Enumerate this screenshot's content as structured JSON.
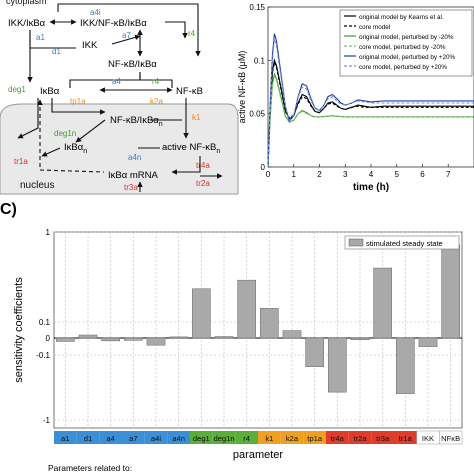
{
  "diagram": {
    "compartments": {
      "cytoplasm": "cytoplasm",
      "nucleus": "nucleus"
    },
    "species": {
      "ikk_ikba": "IKK/IκBα",
      "ikk_nfkb_ikba": "IKK/NF-κB/IκBα",
      "ikk": "IKK",
      "nfkb_ikba": "NF-κB/IκBα",
      "ikba": "IκBα",
      "nfkb": "NF-κB",
      "nfkb_ikba_n": "NF-κB/IκBα",
      "nfkb_ikba_n_sub": "n",
      "ikba_n": "IκBα",
      "ikba_n_sub": "n",
      "active_nfkb_n": "active NF-κB",
      "active_nfkb_n_sub": "n",
      "ikba_mrna": "IκBα mRNA"
    },
    "rate_labels": {
      "a4i": "a4i",
      "r4_top": "r4",
      "a1": "a1",
      "d1": "d1",
      "a7": "a7",
      "a4": "a4",
      "r4_mid": "r4",
      "deg1": "deg1",
      "tp1a": "tp1a",
      "k2a": "k2a",
      "deg1n": "deg1n",
      "a4n": "a4n",
      "k1": "k1",
      "tr1a": "tr1a",
      "tr4a": "tr4a",
      "tr2a": "tr2a",
      "tr3a": "tr3a"
    },
    "label_colors": {
      "blue": "#3a7fc4",
      "green": "#4a9c2f",
      "orange": "#e8891f",
      "red": "#d2342b"
    }
  },
  "time_course": {
    "chart_data": {
      "type": "line",
      "xlabel": "time (h)",
      "ylabel": "active NF-κB (μM)",
      "xlim": [
        0,
        8
      ],
      "ylim": [
        0,
        0.15
      ],
      "xticks": [
        "0",
        "1",
        "2",
        "3",
        "4",
        "5",
        "6",
        "7"
      ],
      "yticks": [
        "0",
        "0.05",
        "0.1",
        "0.15"
      ],
      "legend_position": "top-right",
      "series": [
        {
          "name": "original model by Kearns et al.",
          "color": "#000000",
          "dash": "solid",
          "x": [
            0,
            0.08,
            0.17,
            0.25,
            0.33,
            0.5,
            0.67,
            0.83,
            1,
            1.17,
            1.33,
            1.5,
            1.67,
            1.83,
            2,
            2.17,
            2.33,
            2.5,
            2.67,
            2.83,
            3,
            3.25,
            3.5,
            3.75,
            4,
            4.5,
            5,
            5.5,
            6,
            7,
            8
          ],
          "y": [
            0,
            0.05,
            0.09,
            0.1,
            0.095,
            0.075,
            0.053,
            0.045,
            0.048,
            0.06,
            0.068,
            0.066,
            0.058,
            0.052,
            0.051,
            0.055,
            0.06,
            0.061,
            0.058,
            0.055,
            0.054,
            0.056,
            0.058,
            0.057,
            0.056,
            0.057,
            0.057,
            0.057,
            0.057,
            0.057,
            0.057
          ]
        },
        {
          "name": "core model",
          "color": "#000000",
          "dash": "dashed",
          "x": [
            0,
            0.08,
            0.17,
            0.25,
            0.33,
            0.5,
            0.67,
            0.83,
            1,
            1.17,
            1.33,
            1.5,
            1.67,
            1.83,
            2,
            2.17,
            2.33,
            2.5,
            2.67,
            2.83,
            3,
            3.25,
            3.5,
            3.75,
            4,
            4.5,
            5,
            5.5,
            6,
            7,
            8
          ],
          "y": [
            0,
            0.05,
            0.088,
            0.098,
            0.093,
            0.073,
            0.052,
            0.046,
            0.049,
            0.059,
            0.066,
            0.064,
            0.057,
            0.052,
            0.051,
            0.055,
            0.059,
            0.06,
            0.057,
            0.055,
            0.054,
            0.056,
            0.057,
            0.056,
            0.056,
            0.056,
            0.056,
            0.056,
            0.056,
            0.056,
            0.056
          ]
        },
        {
          "name": "original model, perturbed by -20%",
          "color": "#3a9a35",
          "dash": "solid",
          "x": [
            0,
            0.08,
            0.17,
            0.25,
            0.33,
            0.5,
            0.67,
            0.83,
            1,
            1.17,
            1.33,
            1.5,
            1.67,
            1.83,
            2,
            2.5,
            3,
            3.5,
            4,
            5,
            6,
            7,
            8
          ],
          "y": [
            0,
            0.045,
            0.078,
            0.087,
            0.083,
            0.066,
            0.048,
            0.042,
            0.044,
            0.05,
            0.053,
            0.051,
            0.048,
            0.047,
            0.047,
            0.048,
            0.047,
            0.047,
            0.047,
            0.047,
            0.047,
            0.047,
            0.047
          ]
        },
        {
          "name": "core model, perturbed by -20%",
          "color": "#7cc46a",
          "dash": "dashed",
          "x": [
            0,
            0.08,
            0.17,
            0.25,
            0.33,
            0.5,
            0.67,
            0.83,
            1,
            1.17,
            1.33,
            1.5,
            1.67,
            1.83,
            2,
            2.5,
            3,
            3.5,
            4,
            5,
            6,
            7,
            8
          ],
          "y": [
            0,
            0.045,
            0.076,
            0.085,
            0.081,
            0.064,
            0.047,
            0.042,
            0.044,
            0.05,
            0.052,
            0.05,
            0.048,
            0.047,
            0.047,
            0.048,
            0.047,
            0.047,
            0.047,
            0.047,
            0.047,
            0.047,
            0.047
          ]
        },
        {
          "name": "original model, perturbed by +20%",
          "color": "#1f3fa8",
          "dash": "solid",
          "x": [
            0,
            0.08,
            0.17,
            0.25,
            0.33,
            0.5,
            0.67,
            0.83,
            1,
            1.17,
            1.33,
            1.5,
            1.67,
            1.83,
            2,
            2.17,
            2.33,
            2.5,
            2.67,
            2.83,
            3,
            3.25,
            3.5,
            3.75,
            4,
            4.5,
            5,
            5.5,
            6,
            7,
            8
          ],
          "y": [
            0,
            0.058,
            0.105,
            0.125,
            0.118,
            0.088,
            0.057,
            0.043,
            0.048,
            0.066,
            0.078,
            0.076,
            0.064,
            0.055,
            0.053,
            0.058,
            0.066,
            0.068,
            0.064,
            0.06,
            0.058,
            0.06,
            0.063,
            0.062,
            0.061,
            0.062,
            0.062,
            0.062,
            0.062,
            0.062,
            0.062
          ]
        },
        {
          "name": "core model, perturbed by +20%",
          "color": "#7a8fd0",
          "dash": "dashed",
          "x": [
            0,
            0.08,
            0.17,
            0.25,
            0.33,
            0.5,
            0.67,
            0.83,
            1,
            1.17,
            1.33,
            1.5,
            1.67,
            1.83,
            2,
            2.17,
            2.33,
            2.5,
            2.67,
            2.83,
            3,
            3.25,
            3.5,
            3.75,
            4,
            4.5,
            5,
            5.5,
            6,
            7,
            8
          ],
          "y": [
            0,
            0.056,
            0.1,
            0.12,
            0.113,
            0.085,
            0.056,
            0.044,
            0.049,
            0.065,
            0.075,
            0.073,
            0.062,
            0.055,
            0.053,
            0.058,
            0.064,
            0.066,
            0.062,
            0.059,
            0.058,
            0.06,
            0.062,
            0.061,
            0.06,
            0.06,
            0.06,
            0.06,
            0.06,
            0.06,
            0.06
          ]
        }
      ]
    }
  },
  "sensitivity": {
    "panel_label": "C)",
    "chart_data": {
      "type": "bar",
      "xlabel": "parameter",
      "ylabel": "sensitivity coefficients",
      "yscale": "symlog",
      "ylim": [
        -1,
        1
      ],
      "yticks": [
        "1",
        "0.1",
        "0",
        "-0.1",
        "-1"
      ],
      "grid": true,
      "legend_position": "top-right",
      "series": [
        {
          "name": "stimulated steady state",
          "color": "#a9a9a9",
          "categories": [
            "a1",
            "d1",
            "a4",
            "a7",
            "a4i",
            "a4n",
            "deg1",
            "deg1n",
            "r4",
            "k1",
            "k2a",
            "tp1a",
            "tr4a",
            "tr2a",
            "tr3a",
            "tr1a",
            "IKK",
            "NFκB"
          ],
          "values": [
            -0.012,
            0.008,
            -0.01,
            -0.008,
            -0.025,
            0.003,
            0.15,
            0.004,
            0.2,
            0.08,
            0.02,
            -0.1,
            -0.3,
            -0.006,
            0.3,
            -0.32,
            -0.03,
            0.65
          ]
        }
      ],
      "category_groups": [
        {
          "color": "#3a8fd6",
          "categories": [
            "a1",
            "d1",
            "a4",
            "a7",
            "a4i",
            "a4n"
          ]
        },
        {
          "color": "#5aae3a",
          "categories": [
            "deg1",
            "deg1n",
            "r4"
          ]
        },
        {
          "color": "#f0a020",
          "categories": [
            "k1",
            "k2a",
            "tp1a"
          ]
        },
        {
          "color": "#e03c2c",
          "categories": [
            "tr4a",
            "tr2a",
            "tr3a",
            "tr1a"
          ]
        }
      ]
    },
    "footer_note": "Parameters related to:"
  }
}
